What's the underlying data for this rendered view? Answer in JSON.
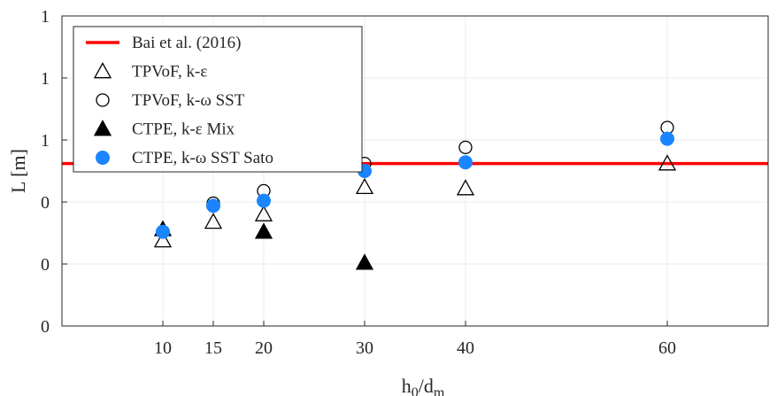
{
  "chart_data": {
    "type": "scatter",
    "xlabel": "h0/dm",
    "xlabel_parts": {
      "base1": "h",
      "sub1": "0",
      "mid": "/d",
      "sub2": "m"
    },
    "ylabel": "L [m]",
    "xlim": [
      0,
      70
    ],
    "ylim": [
      0,
      1.25
    ],
    "x_ticks": [
      10,
      15,
      20,
      30,
      40,
      60
    ],
    "x_tick_labels": [
      "10",
      "15",
      "20",
      "30",
      "40",
      "60"
    ],
    "y_ticks": [
      0,
      0.25,
      0.5,
      0.75,
      1.0,
      1.25
    ],
    "y_tick_labels": [
      "0",
      "0",
      "0",
      "1",
      "1",
      "1"
    ],
    "grid": true,
    "legend_position": "top-left",
    "series": [
      {
        "name": "Bai et al. (2016)",
        "kind": "hline",
        "y": 0.655,
        "color": "#ff0000"
      },
      {
        "name": "TPVoF, k-ε",
        "marker": "triangle-open",
        "x": [
          10,
          15,
          20,
          30,
          40,
          60
        ],
        "y": [
          0.345,
          0.42,
          0.45,
          0.56,
          0.555,
          0.655
        ]
      },
      {
        "name": "TPVoF, k-ω SST",
        "marker": "circle-open",
        "x": [
          10,
          15,
          20,
          30,
          40,
          60
        ],
        "y": [
          0.38,
          0.495,
          0.545,
          0.655,
          0.72,
          0.8
        ]
      },
      {
        "name": "CTPE,  k-ε Mix",
        "marker": "triangle-filled",
        "x": [
          10,
          20,
          30
        ],
        "y": [
          0.39,
          0.38,
          0.255
        ]
      },
      {
        "name": "CTPE,  k-ω SST Sato",
        "marker": "circle-filled",
        "x": [
          10,
          15,
          20,
          30,
          40,
          60
        ],
        "y": [
          0.38,
          0.485,
          0.505,
          0.625,
          0.66,
          0.755
        ],
        "color": "#1a85ff"
      }
    ]
  }
}
